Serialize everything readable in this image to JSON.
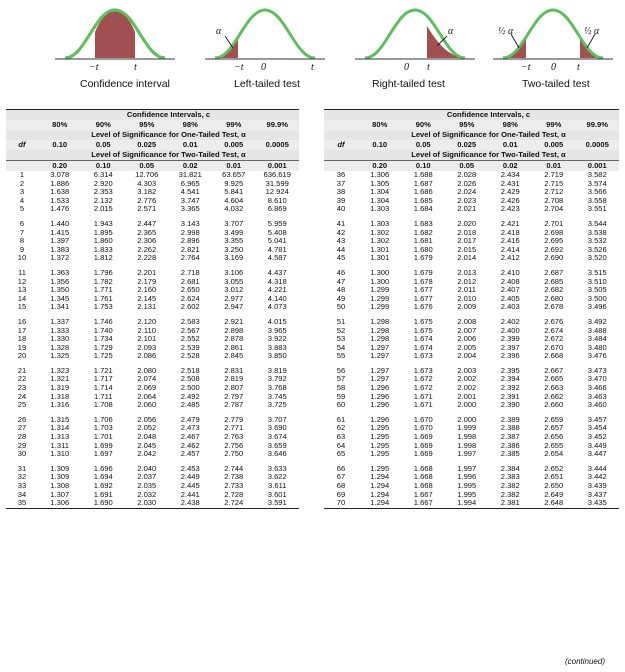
{
  "curves": [
    {
      "caption": "Confidence interval",
      "labels": [
        "−t",
        "t"
      ]
    },
    {
      "caption": "Left-tailed test",
      "labels": [
        "−t",
        "0",
        "t"
      ],
      "alpha": "α"
    },
    {
      "caption": "Right-tailed test",
      "labels": [
        "0",
        "t"
      ],
      "alpha": "α"
    },
    {
      "caption": "Two-tailed test",
      "labels": [
        "−t",
        "0",
        "t"
      ],
      "alpha_left": "½ α",
      "alpha_right": "½ α"
    }
  ],
  "colors": {
    "curve": "#5fbe5f",
    "shade": "#a05050",
    "band": "#e6e6e6"
  },
  "table": {
    "title": "Confidence Intervals, c",
    "conf": [
      "80%",
      "90%",
      "95%",
      "98%",
      "99%",
      "99.9%"
    ],
    "one_tailed_title": "Level of Significance for One-Tailed Test, α",
    "df_label": "df",
    "one_tailed": [
      "0.10",
      "0.05",
      "0.025",
      "0.01",
      "0.005",
      "0.0005"
    ],
    "two_tailed_title": "Level of Significance for Two-Tailed Test, α",
    "two_tailed": [
      "0.20",
      "0.10",
      "0.05",
      "0.02",
      "0.01",
      "0.001"
    ]
  },
  "left_rows": [
    [
      "1",
      "3.078",
      "6.314",
      "12.706",
      "31.821",
      "63.657",
      "636.619"
    ],
    [
      "2",
      "1.886",
      "2.920",
      "4.303",
      "6.965",
      "9.925",
      "31.599"
    ],
    [
      "3",
      "1.638",
      "2.353",
      "3.182",
      "4.541",
      "5.841",
      "12.924"
    ],
    [
      "4",
      "1.533",
      "2.132",
      "2.776",
      "3.747",
      "4.604",
      "8.610"
    ],
    [
      "5",
      "1.476",
      "2.015",
      "2.571",
      "3.365",
      "4.032",
      "6.869"
    ],
    [
      "6",
      "1.440",
      "1.943",
      "2.447",
      "3.143",
      "3.707",
      "5.959"
    ],
    [
      "7",
      "1.415",
      "1.895",
      "2.365",
      "2.998",
      "3.499",
      "5.408"
    ],
    [
      "8",
      "1.397",
      "1.860",
      "2.306",
      "2.896",
      "3.355",
      "5.041"
    ],
    [
      "9",
      "1.383",
      "1.833",
      "2.262",
      "2.821",
      "3.250",
      "4.781"
    ],
    [
      "10",
      "1.372",
      "1.812",
      "2.228",
      "2.764",
      "3.169",
      "4.587"
    ],
    [
      "11",
      "1.363",
      "1.796",
      "2.201",
      "2.718",
      "3.106",
      "4.437"
    ],
    [
      "12",
      "1.356",
      "1.782",
      "2.179",
      "2.681",
      "3.055",
      "4.318"
    ],
    [
      "13",
      "1.350",
      "1.771",
      "2.160",
      "2.650",
      "3.012",
      "4.221"
    ],
    [
      "14",
      "1.345",
      "1.761",
      "2.145",
      "2.624",
      "2.977",
      "4.140"
    ],
    [
      "15",
      "1.341",
      "1.753",
      "2.131",
      "2.602",
      "2.947",
      "4.073"
    ],
    [
      "16",
      "1.337",
      "1.746",
      "2.120",
      "2.583",
      "2.921",
      "4.015"
    ],
    [
      "17",
      "1.333",
      "1.740",
      "2.110",
      "2.567",
      "2.898",
      "3.965"
    ],
    [
      "18",
      "1.330",
      "1.734",
      "2.101",
      "2.552",
      "2.878",
      "3.922"
    ],
    [
      "19",
      "1.328",
      "1.729",
      "2.093",
      "2.539",
      "2.861",
      "3.883"
    ],
    [
      "20",
      "1.325",
      "1.725",
      "2.086",
      "2.528",
      "2.845",
      "3.850"
    ],
    [
      "21",
      "1.323",
      "1.721",
      "2.080",
      "2.518",
      "2.831",
      "3.819"
    ],
    [
      "22",
      "1.321",
      "1.717",
      "2.074",
      "2.508",
      "2.819",
      "3.792"
    ],
    [
      "23",
      "1.319",
      "1.714",
      "2.069",
      "2.500",
      "2.807",
      "3.768"
    ],
    [
      "24",
      "1.318",
      "1.711",
      "2.064",
      "2.492",
      "2.797",
      "3.745"
    ],
    [
      "25",
      "1.316",
      "1.708",
      "2.060",
      "2.485",
      "2.787",
      "3.725"
    ],
    [
      "26",
      "1.315",
      "1.706",
      "2.056",
      "2.479",
      "2.779",
      "3.707"
    ],
    [
      "27",
      "1.314",
      "1.703",
      "2.052",
      "2.473",
      "2.771",
      "3.690"
    ],
    [
      "28",
      "1.313",
      "1.701",
      "2.048",
      "2.467",
      "2.763",
      "3.674"
    ],
    [
      "29",
      "1.311",
      "1.699",
      "2.045",
      "2.462",
      "2.756",
      "3.659"
    ],
    [
      "30",
      "1.310",
      "1.697",
      "2.042",
      "2.457",
      "2.750",
      "3.646"
    ],
    [
      "31",
      "1.309",
      "1.696",
      "2.040",
      "2.453",
      "2.744",
      "3.633"
    ],
    [
      "32",
      "1.309",
      "1.694",
      "2.037",
      "2.449",
      "2.738",
      "3.622"
    ],
    [
      "33",
      "1.308",
      "1.692",
      "2.035",
      "2.445",
      "2.733",
      "3.611"
    ],
    [
      "34",
      "1.307",
      "1.691",
      "2.032",
      "2.441",
      "2.728",
      "3.601"
    ],
    [
      "35",
      "1.306",
      "1.690",
      "2.030",
      "2.438",
      "2.724",
      "3.591"
    ]
  ],
  "right_rows": [
    [
      "36",
      "1.306",
      "1.688",
      "2.028",
      "2.434",
      "2.719",
      "3.582"
    ],
    [
      "37",
      "1.305",
      "1.687",
      "2.026",
      "2.431",
      "2.715",
      "3.574"
    ],
    [
      "38",
      "1.304",
      "1.686",
      "2.024",
      "2.429",
      "2.712",
      "3.566"
    ],
    [
      "39",
      "1.304",
      "1.685",
      "2.023",
      "2.426",
      "2.708",
      "3.558"
    ],
    [
      "40",
      "1.303",
      "1.684",
      "2.021",
      "2.423",
      "2.704",
      "3.551"
    ],
    [
      "41",
      "1.303",
      "1.683",
      "2.020",
      "2.421",
      "2.701",
      "3.544"
    ],
    [
      "42",
      "1.302",
      "1.682",
      "2.018",
      "2.418",
      "2.698",
      "3.538"
    ],
    [
      "43",
      "1.302",
      "1.681",
      "2.017",
      "2.416",
      "2.695",
      "3.532"
    ],
    [
      "44",
      "1.301",
      "1.680",
      "2.015",
      "2.414",
      "2.692",
      "3.526"
    ],
    [
      "45",
      "1.301",
      "1.679",
      "2.014",
      "2.412",
      "2.690",
      "3.520"
    ],
    [
      "46",
      "1.300",
      "1.679",
      "2.013",
      "2.410",
      "2.687",
      "3.515"
    ],
    [
      "47",
      "1.300",
      "1.678",
      "2.012",
      "2.408",
      "2.685",
      "3.510"
    ],
    [
      "48",
      "1.299",
      "1.677",
      "2.011",
      "2.407",
      "2.682",
      "3.505"
    ],
    [
      "49",
      "1.299",
      "1.677",
      "2.010",
      "2.405",
      "2.680",
      "3.500"
    ],
    [
      "50",
      "1.299",
      "1.676",
      "2.009",
      "2.403",
      "2.678",
      "3.496"
    ],
    [
      "51",
      "1.298",
      "1.675",
      "2.008",
      "2.402",
      "2.676",
      "3.492"
    ],
    [
      "52",
      "1.298",
      "1.675",
      "2.007",
      "2.400",
      "2.674",
      "3.488"
    ],
    [
      "53",
      "1.298",
      "1.674",
      "2.006",
      "2.399",
      "2.672",
      "3.484"
    ],
    [
      "54",
      "1.297",
      "1.674",
      "2.005",
      "2.397",
      "2.670",
      "3.480"
    ],
    [
      "55",
      "1.297",
      "1.673",
      "2.004",
      "2.396",
      "2.668",
      "3.476"
    ],
    [
      "56",
      "1.297",
      "1.673",
      "2.003",
      "2.395",
      "2.667",
      "3.473"
    ],
    [
      "57",
      "1.297",
      "1.672",
      "2.002",
      "2.394",
      "2.665",
      "3.470"
    ],
    [
      "58",
      "1.296",
      "1.672",
      "2.002",
      "2.392",
      "2.663",
      "3.466"
    ],
    [
      "59",
      "1.296",
      "1.671",
      "2.001",
      "2.391",
      "2.662",
      "3.463"
    ],
    [
      "60",
      "1.296",
      "1.671",
      "2.000",
      "2.390",
      "2.660",
      "3.460"
    ],
    [
      "61",
      "1.296",
      "1.670",
      "2.000",
      "2.389",
      "2.659",
      "3.457"
    ],
    [
      "62",
      "1.295",
      "1.670",
      "1.999",
      "2.388",
      "2.657",
      "3.454"
    ],
    [
      "63",
      "1.295",
      "1.669",
      "1.998",
      "2.387",
      "2.656",
      "3.452"
    ],
    [
      "64",
      "1.295",
      "1.669",
      "1.998",
      "2.386",
      "2.655",
      "3.449"
    ],
    [
      "65",
      "1.295",
      "1.669",
      "1.997",
      "2.385",
      "2.654",
      "3.447"
    ],
    [
      "66",
      "1.295",
      "1.668",
      "1.997",
      "2.384",
      "2.652",
      "3.444"
    ],
    [
      "67",
      "1.294",
      "1.668",
      "1.996",
      "2.383",
      "2.651",
      "3.442"
    ],
    [
      "68",
      "1.294",
      "1.668",
      "1.995",
      "2.382",
      "2.650",
      "3.439"
    ],
    [
      "69",
      "1.294",
      "1.667",
      "1.995",
      "2.382",
      "2.649",
      "3.437"
    ],
    [
      "70",
      "1.294",
      "1.667",
      "1.994",
      "2.381",
      "2.648",
      "3.435"
    ]
  ],
  "footer": "(continued)"
}
